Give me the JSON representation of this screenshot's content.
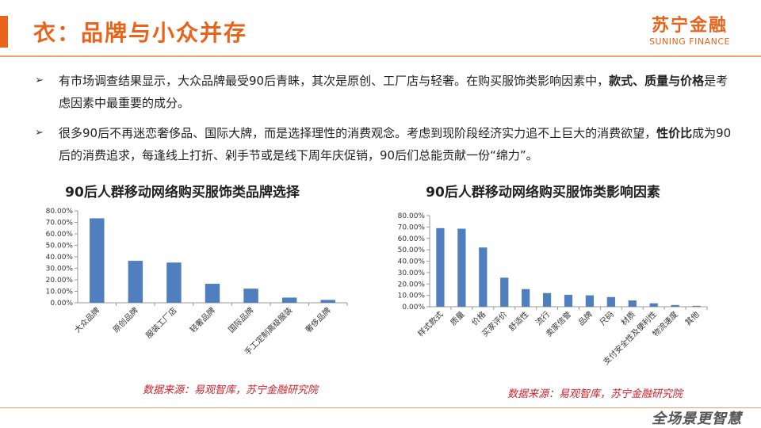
{
  "header": {
    "title": "衣：品牌与小众并存",
    "logo_cn": "苏宁金融",
    "logo_en": "SUNING FINANCE"
  },
  "bullets": [
    {
      "marker": "➢",
      "p1": "有市场调查结果显示，大众品牌最受90后青睐，其次是原创、工厂店与轻奢。在购买服饰类影响因素中，",
      "b1": "款式、质量与价格",
      "p2": "是考虑因素中最重要的成分。"
    },
    {
      "marker": "➢",
      "p1": "很多90后不再迷恋奢侈品、国际大牌，而是选择理性的消费观念。考虑到现阶段经济实力追不上巨大的消费欲望，",
      "b1": "性价比",
      "p2": "成为90后的消费追求，每逢线上打折、剁手节或是线下周年庆促销，90后们总能贡献一份“绵力”。"
    }
  ],
  "sources": {
    "left": "数据来源：易观智库，苏宁金融研究院",
    "right": "数据来源：易观智库，苏宁金融研究院"
  },
  "footer": {
    "watermark": "全场景更智慧"
  },
  "colors": {
    "accent": "#e8641b",
    "bar": "#4f7fbe",
    "source": "#d0202a"
  },
  "chart_data": [
    {
      "type": "bar",
      "title": "90后人群移动网络购买服饰类品牌选择",
      "categories": [
        "大众品牌",
        "原创品牌",
        "服装工厂店",
        "轻奢品牌",
        "国际品牌",
        "手工定制高级服装",
        "奢侈品牌"
      ],
      "values": [
        73.5,
        36.5,
        35.0,
        16.5,
        12.3,
        4.5,
        2.5
      ],
      "ylim": [
        0,
        80
      ],
      "yticks": [
        "0.00%",
        "10.00%",
        "20.00%",
        "30.00%",
        "40.00%",
        "50.00%",
        "60.00%",
        "70.00%",
        "80.00%"
      ],
      "grid": false,
      "xlabel": "",
      "ylabel": ""
    },
    {
      "type": "bar",
      "title": "90后人群移动网络购买服饰类影响因素",
      "categories": [
        "样式款式",
        "质量",
        "价格",
        "买家评价",
        "舒适性",
        "流行",
        "卖家信誉",
        "品牌",
        "尺码",
        "材质",
        "支付安全性及便利性",
        "物流速度",
        "其他"
      ],
      "values": [
        69.0,
        68.5,
        52.0,
        25.5,
        15.5,
        12.0,
        10.5,
        10.0,
        8.5,
        5.5,
        3.0,
        1.5,
        0.8
      ],
      "ylim": [
        0,
        80
      ],
      "yticks": [
        "0.00%",
        "10.00%",
        "20.00%",
        "30.00%",
        "40.00%",
        "50.00%",
        "60.00%",
        "70.00%",
        "80.00%"
      ],
      "grid": false,
      "xlabel": "",
      "ylabel": ""
    }
  ]
}
